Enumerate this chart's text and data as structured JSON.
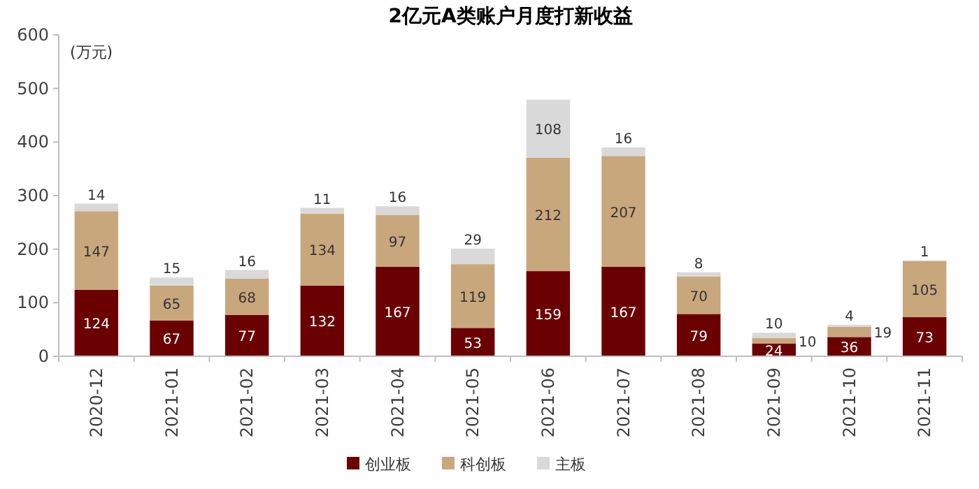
{
  "chart_data": {
    "type": "bar",
    "title": "2亿元A类账户月度打新收益",
    "ylabel": "(万元)",
    "stacked": true,
    "data_labels": true,
    "legend": "bottom",
    "grid": false,
    "categories": [
      "2020-12",
      "2021-01",
      "2021-02",
      "2021-03",
      "2021-04",
      "2021-05",
      "2021-06",
      "2021-07",
      "2021-08",
      "2021-09",
      "2021-10",
      "2021-11"
    ],
    "ylim": [
      0,
      600
    ],
    "yticks": [
      0,
      100,
      200,
      300,
      400,
      500,
      600
    ],
    "series": [
      {
        "name": "创业板",
        "color": "#6b0000",
        "values": [
          124,
          67,
          77,
          132,
          167,
          53,
          159,
          167,
          79,
          24,
          36,
          73
        ]
      },
      {
        "name": "科创板",
        "color": "#c9a77c",
        "values": [
          147,
          65,
          68,
          134,
          97,
          119,
          212,
          207,
          70,
          10,
          19,
          105
        ]
      },
      {
        "name": "主板",
        "color": "#d9d9d9",
        "values": [
          14,
          15,
          16,
          11,
          16,
          29,
          108,
          16,
          8,
          10,
          4,
          1
        ]
      }
    ]
  }
}
